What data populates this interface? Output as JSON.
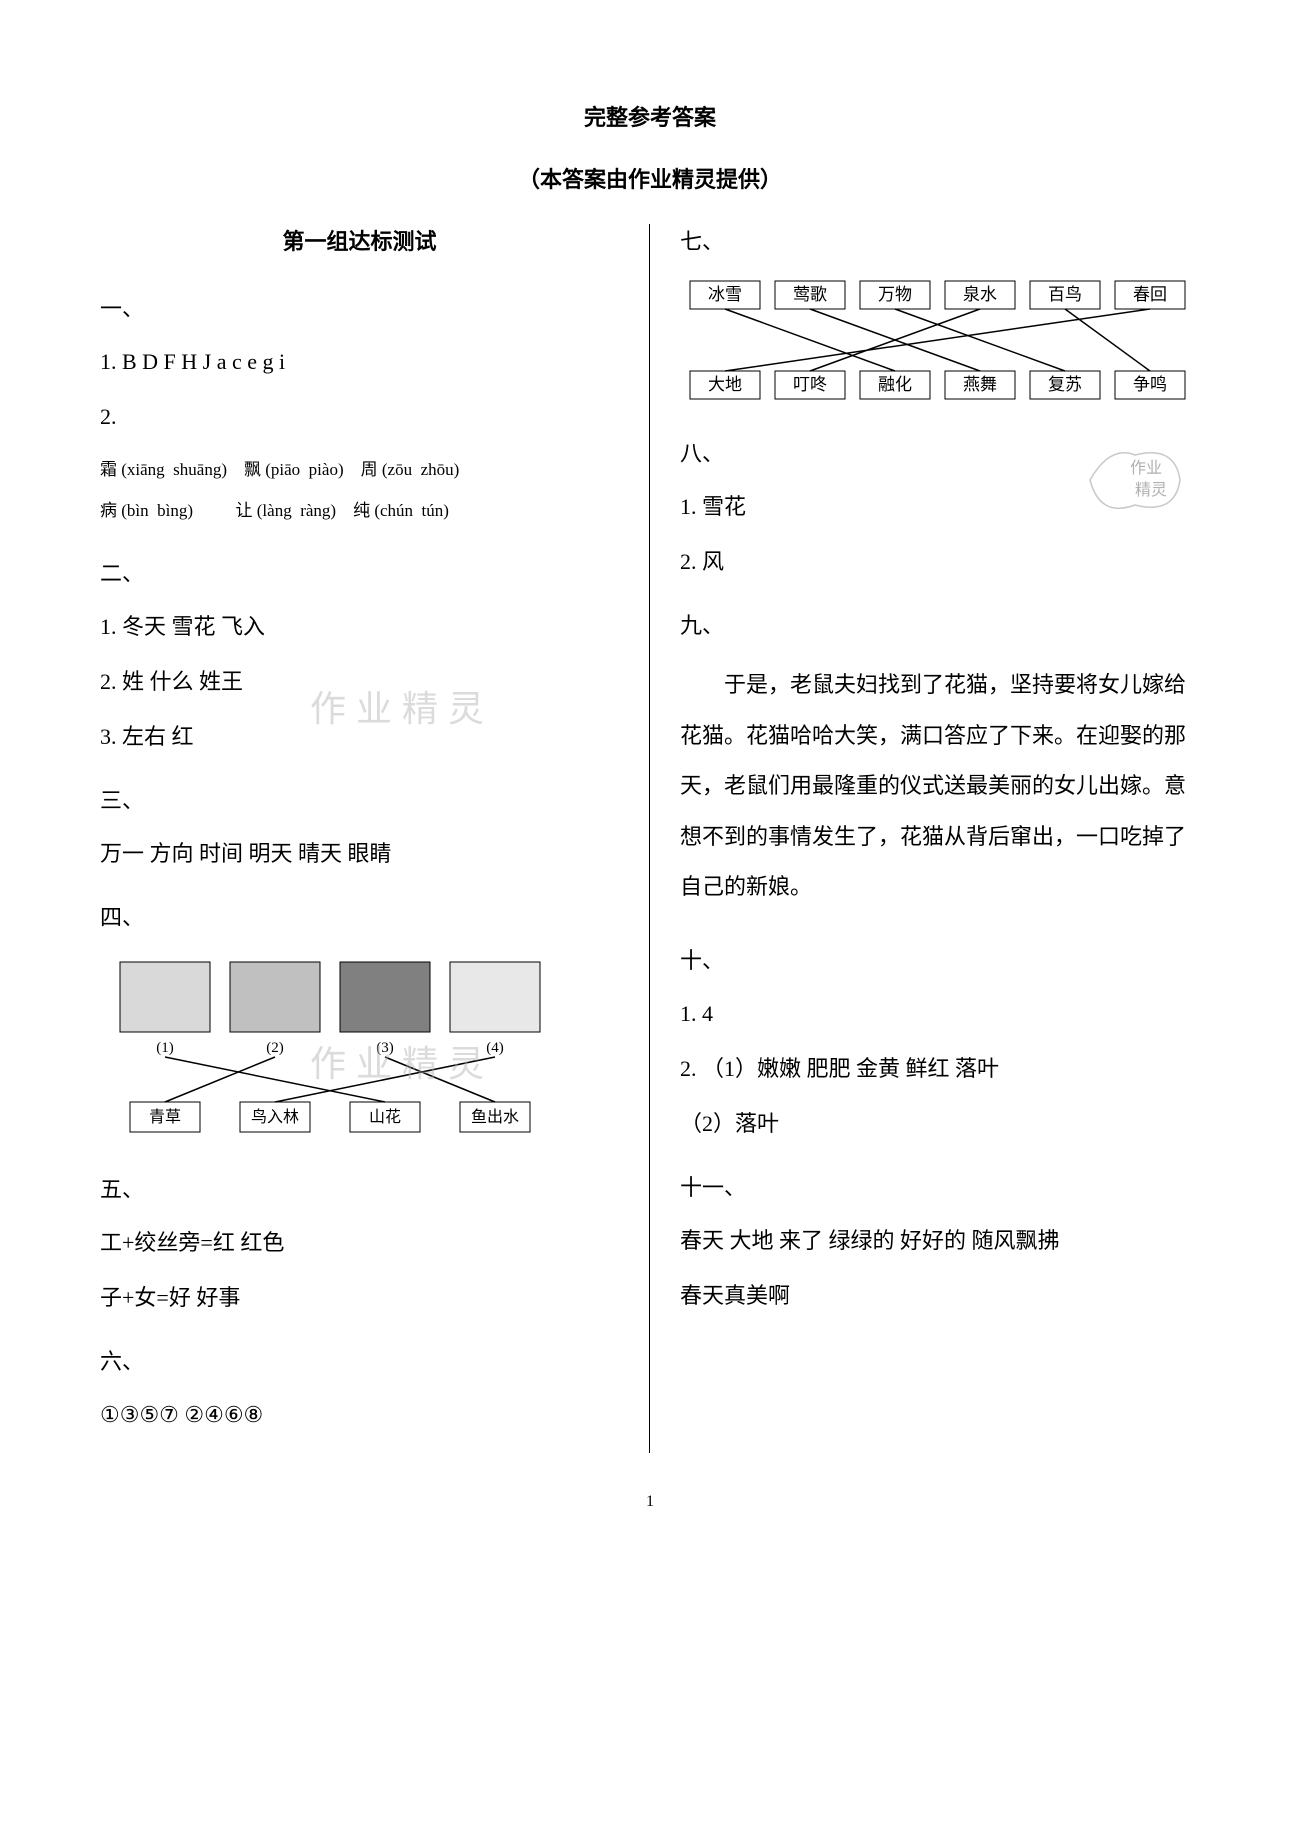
{
  "title_main": "完整参考答案",
  "title_sub": "（本答案由作业精灵提供）",
  "left": {
    "section_title": "第一组达标测试",
    "h1": "一、",
    "a1_1": "1. B D F H J a c e g i",
    "a1_2": "2.",
    "pinyin_line1": "霜 (xiāng  shuāng)    飘 (piāo  piào)    周 (zōu  zhōu)",
    "pinyin_line2": "病 (bìn  bìng)          让 (làng  ràng)    纯 (chún  tún)",
    "h2": "二、",
    "a2_1": "1. 冬天 雪花 飞入",
    "a2_2": "2. 姓 什么 姓王",
    "a2_3": "3. 左右 红",
    "h3": "三、",
    "a3": "万一 方向 时间 明天 晴天 眼睛",
    "h4": "四、",
    "fig_labels_top": [
      "(1)",
      "(2)",
      "(3)",
      "(4)"
    ],
    "fig_labels_bottom": [
      "青草",
      "鸟入林",
      "山花",
      "鱼出水"
    ],
    "h5": "五、",
    "a5_1": "工+绞丝旁=红 红色",
    "a5_2": "子+女=好 好事",
    "h6": "六、",
    "a6": "①③⑤⑦ ②④⑥⑧"
  },
  "right": {
    "h7": "七、",
    "top_labels": [
      "冰雪",
      "莺歌",
      "万物",
      "泉水",
      "百鸟",
      "春回"
    ],
    "bottom_labels": [
      "大地",
      "叮咚",
      "融化",
      "燕舞",
      "复苏",
      "争鸣"
    ],
    "h8": "八、",
    "a8_1": "1. 雪花",
    "a8_2": "2. 风",
    "h9": "九、",
    "para9": "于是，老鼠夫妇找到了花猫，坚持要将女儿嫁给花猫。花猫哈哈大笑，满口答应了下来。在迎娶的那天，老鼠们用最隆重的仪式送最美丽的女儿出嫁。意想不到的事情发生了，花猫从背后窜出，一口吃掉了自己的新娘。",
    "h10": "十、",
    "a10_1": "1. 4",
    "a10_2": "2. （1）嫩嫩 肥肥 金黄 鲜红 落叶",
    "a10_3": "（2）落叶",
    "h11": "十一、",
    "a11_1": "春天 大地 来了 绿绿的 好好的 随风飘拂",
    "a11_2": "春天真美啊"
  },
  "watermarks": {
    "wm_text": "作业精灵",
    "stamp_line1": "作业",
    "stamp_line2": "精灵"
  },
  "page_num": "1",
  "colors": {
    "text": "#000000",
    "bg": "#ffffff",
    "wm": "#b0b0b0",
    "box_stroke": "#000000"
  },
  "match7_edges": [
    [
      0,
      2
    ],
    [
      1,
      3
    ],
    [
      2,
      4
    ],
    [
      3,
      1
    ],
    [
      4,
      5
    ],
    [
      5,
      0
    ]
  ],
  "match4_edges": [
    [
      0,
      2
    ],
    [
      1,
      0
    ],
    [
      2,
      3
    ],
    [
      3,
      1
    ]
  ]
}
